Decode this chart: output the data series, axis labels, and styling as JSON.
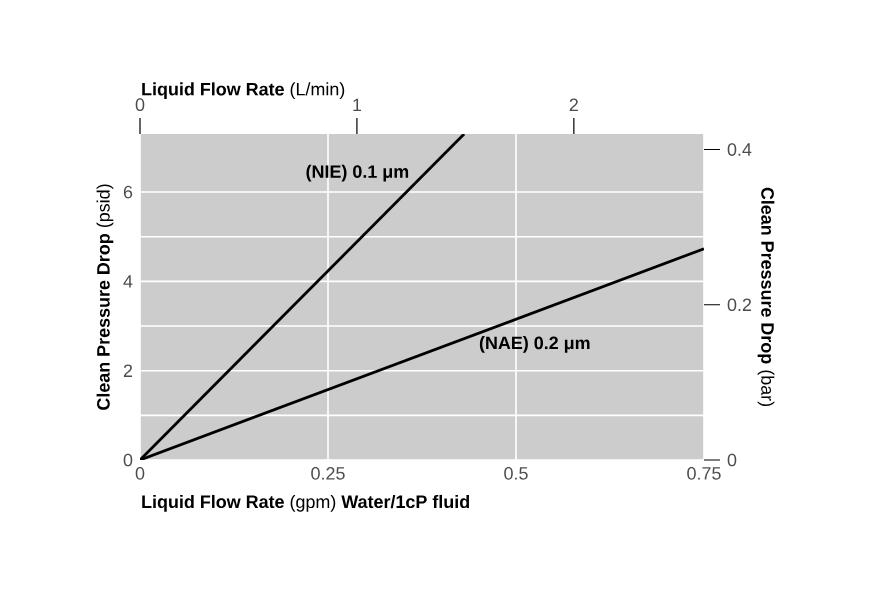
{
  "chart_data": {
    "type": "line",
    "xlabel": "**Liquid Flow Rate** (gpm) **Water/1cP fluid**",
    "ylabel": "**Clean Pressure Drop** (psid)",
    "y2label": "**Clean Pressure Drop** (bar)",
    "x2label": "**Liquid Flow Rate** (L/min)",
    "xlim": [
      0,
      0.75
    ],
    "xticks": [
      0,
      0.25,
      0.5,
      0.75
    ],
    "ylim": [
      0,
      7.3
    ],
    "yticks": [
      0,
      2,
      4,
      6
    ],
    "y2lim": [
      0,
      0.42
    ],
    "y2ticks": [
      0,
      0.2,
      0.4
    ],
    "x2lim": [
      0,
      2.6
    ],
    "x2ticks": [
      0,
      1,
      2
    ],
    "grid": true,
    "series": [
      {
        "name": "(NIE) 0.1 μm",
        "color": "#000000",
        "x": [
          0,
          0.431
        ],
        "values": [
          0,
          7.3
        ]
      },
      {
        "name": "(NAE) 0.2 μm",
        "color": "#000000",
        "x": [
          0,
          0.75
        ],
        "values": [
          0,
          4.73
        ]
      }
    ]
  }
}
